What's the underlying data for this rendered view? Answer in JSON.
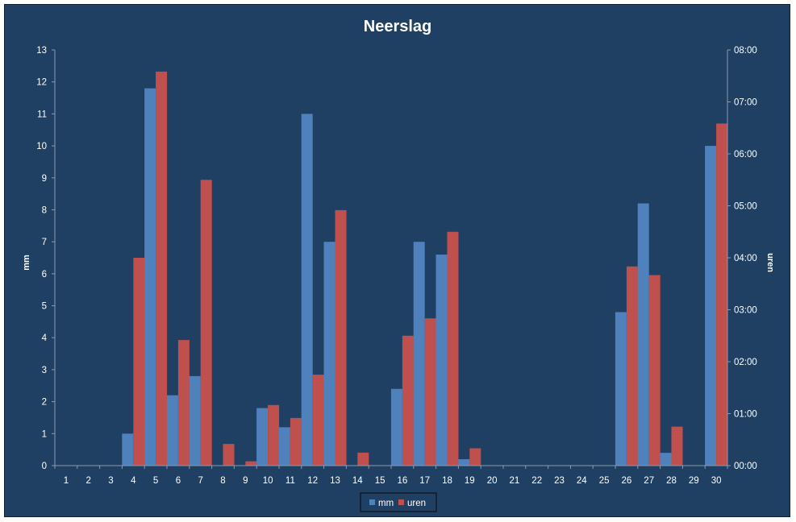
{
  "chart_data": {
    "type": "bar",
    "title": "Neerslag",
    "ylabel": "mm",
    "y2label": "uren",
    "ylim": [
      0,
      13
    ],
    "y2lim_minutes": [
      0,
      480
    ],
    "yticks": [
      "0",
      "1",
      "2",
      "3",
      "4",
      "5",
      "6",
      "7",
      "8",
      "9",
      "10",
      "11",
      "12",
      "13"
    ],
    "y2ticks": [
      "00:00",
      "01:00",
      "02:00",
      "03:00",
      "04:00",
      "05:00",
      "06:00",
      "07:00",
      "08:00"
    ],
    "categories": [
      "1",
      "2",
      "3",
      "4",
      "5",
      "6",
      "7",
      "8",
      "9",
      "10",
      "11",
      "12",
      "13",
      "14",
      "15",
      "16",
      "17",
      "18",
      "19",
      "20",
      "21",
      "22",
      "23",
      "24",
      "25",
      "26",
      "27",
      "28",
      "29",
      "30"
    ],
    "legend_position": "bottom",
    "grid": false,
    "series": [
      {
        "name": "mm",
        "axis": "left",
        "color": "#4f81bd",
        "values": [
          0,
          0,
          0,
          1.0,
          11.8,
          2.2,
          2.8,
          0,
          0,
          1.8,
          1.2,
          11.0,
          7.0,
          0,
          0,
          2.4,
          7.0,
          6.6,
          0.2,
          0,
          0,
          0,
          0,
          0,
          0,
          4.8,
          8.2,
          0.4,
          0,
          10.0
        ]
      },
      {
        "name": "uren",
        "axis": "right",
        "unit": "minutes",
        "color": "#c0504d",
        "values": [
          0,
          0,
          0,
          240,
          455,
          145,
          330,
          25,
          5,
          70,
          55,
          105,
          295,
          15,
          0,
          150,
          170,
          270,
          20,
          0,
          0,
          0,
          0,
          0,
          0,
          230,
          220,
          45,
          0,
          395
        ]
      }
    ]
  }
}
